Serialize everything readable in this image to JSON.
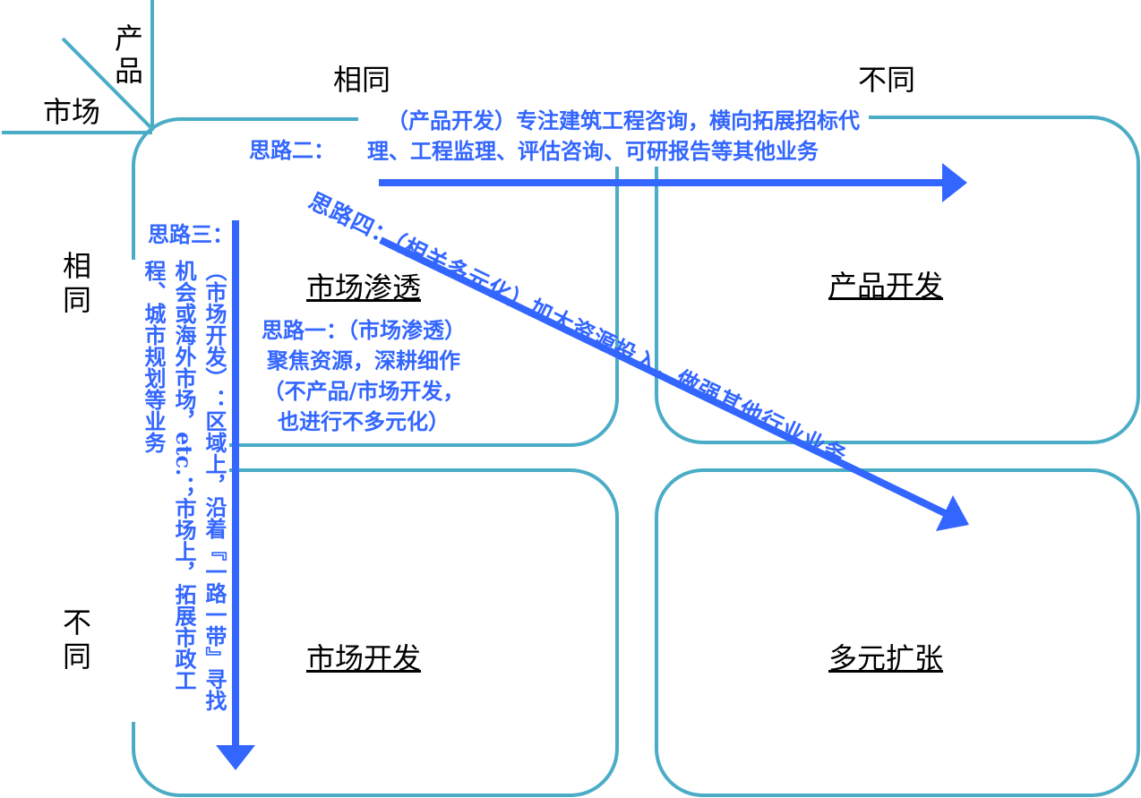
{
  "corner": {
    "product": "产品",
    "market": "市场"
  },
  "columns": {
    "same": "相同",
    "different": "不同"
  },
  "rows": {
    "same": "相同",
    "different": "不同"
  },
  "quadrants": {
    "top_left": "市场渗透",
    "top_right": "产品开发",
    "bottom_left": "市场开发",
    "bottom_right": "多元扩张"
  },
  "ideas": {
    "one_title": "思路一：（市场渗透）",
    "one_lines": [
      "聚焦资源，深耕细作",
      "（不产品/市场开发，",
      "也进行不多元化）"
    ],
    "two_title": "思路二：",
    "two_lines": [
      "（产品开发）专注建筑工程咨询，横向拓展招标代",
      "理、工程监理、评估咨询、可研报告等其他业务"
    ],
    "three_title": "思路三：",
    "three_text": "（市场开发）：区域上，沿着『一路一带』寻找机会或海外市场，etc.；市场上，拓展市政工程、城市规划等业务",
    "four_text": "思路四：（相关多元化）加大资源投入，做强其他行业业务"
  },
  "colors": {
    "outline": "#4bacc6",
    "accent": "#3366ff"
  }
}
